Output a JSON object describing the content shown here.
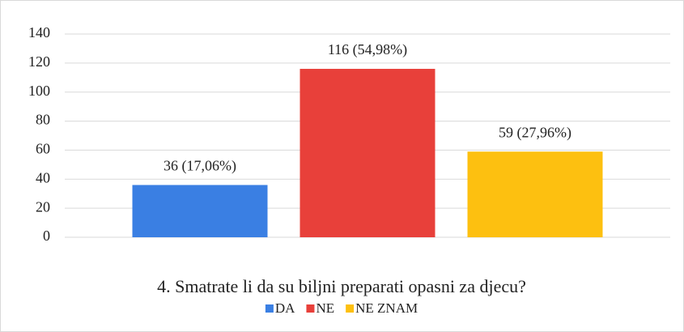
{
  "chart_data": {
    "type": "bar",
    "title": "4. Smatrate li da su biljni preparati opasni za djecu?",
    "categories": [
      null
    ],
    "series": [
      {
        "name": "DA",
        "color": "#3a7fe3",
        "values": [
          36
        ],
        "value_labels": [
          "36 (17,06%)"
        ]
      },
      {
        "name": "NE",
        "color": "#e8403a",
        "values": [
          116
        ],
        "value_labels": [
          "116 (54,98%)"
        ]
      },
      {
        "name": "NE ZNAM",
        "color": "#fdc010",
        "values": [
          59
        ],
        "value_labels": [
          "59 (27,96%)"
        ]
      }
    ],
    "ylim": [
      0,
      140
    ],
    "yticks": [
      0,
      20,
      40,
      60,
      80,
      100,
      120,
      140
    ],
    "grid": true,
    "legend": "bottom"
  }
}
